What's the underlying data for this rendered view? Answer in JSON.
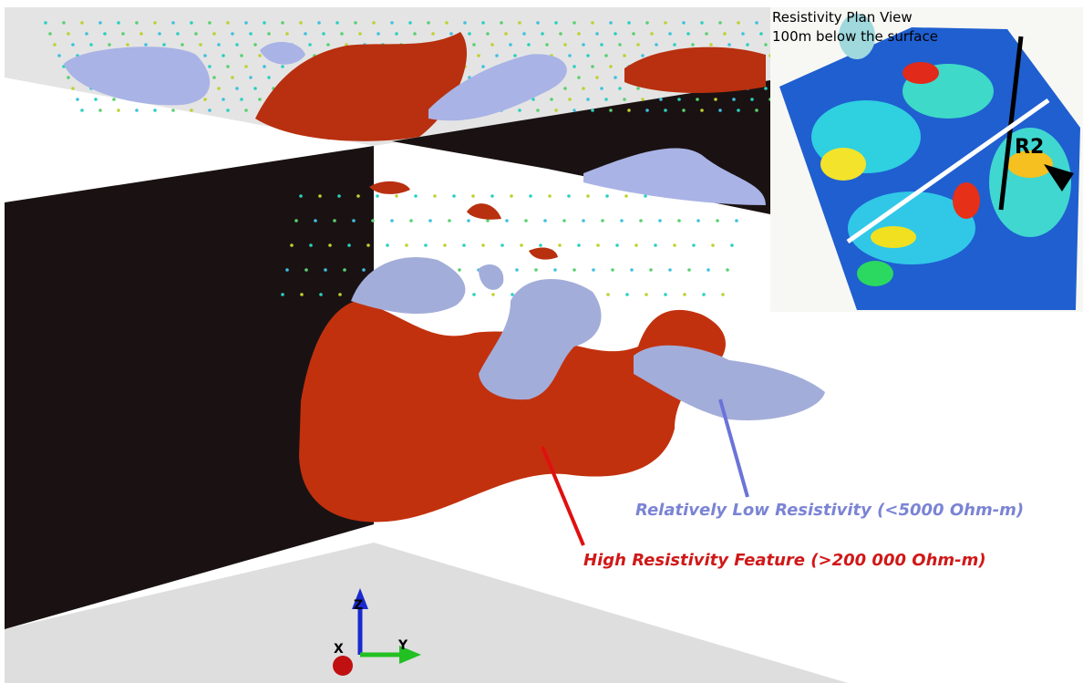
{
  "inset": {
    "title": "Resistivity Plan View",
    "subtitle": "100m below the surface",
    "marker": "R2"
  },
  "annotations": {
    "low": "Relatively Low Resistivity (<5000 Ohm-m)",
    "high": "High Resistivity Feature (>200 000 Ohm-m)"
  },
  "axes": {
    "x": "X",
    "y": "Y",
    "z": "Z"
  }
}
